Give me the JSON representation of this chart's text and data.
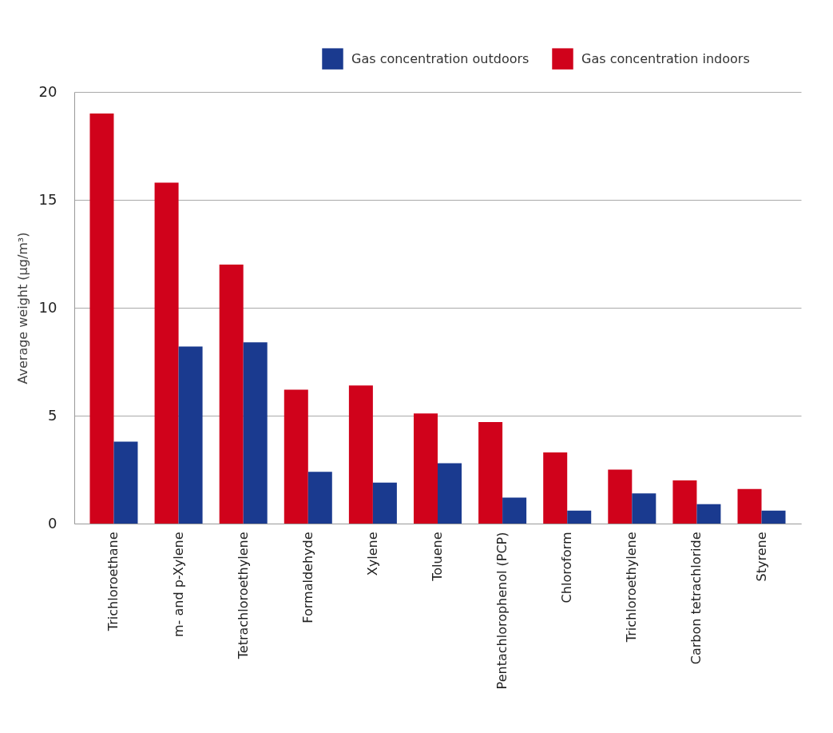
{
  "chart_data": {
    "type": "bar",
    "categories": [
      "Trichloroethane",
      "m- and p-Xylene",
      "Tetrachloroethylene",
      "Formaldehyde",
      "Xylene",
      "Toluene",
      "Pentachlorophenol (PCP)",
      "Chloroform",
      "Trichloroethylene",
      "Carbon tetrachloride",
      "Styrene"
    ],
    "series": [
      {
        "name": "Gas concentration indoors",
        "color": "#d0021b",
        "values": [
          19.0,
          15.8,
          12.0,
          6.2,
          6.4,
          5.1,
          4.7,
          3.3,
          2.5,
          2.0,
          1.6
        ]
      },
      {
        "name": "Gas concentration outdoors",
        "color": "#1a3a8f",
        "values": [
          3.8,
          8.2,
          8.4,
          2.4,
          1.9,
          2.8,
          1.2,
          0.6,
          1.4,
          0.9,
          0.6
        ]
      }
    ],
    "ylabel": "Average weight (µg/m³)",
    "ylim": [
      0,
      20
    ],
    "yticks": [
      0,
      5,
      10,
      15,
      20
    ],
    "grid": "y",
    "legend": "top right"
  }
}
